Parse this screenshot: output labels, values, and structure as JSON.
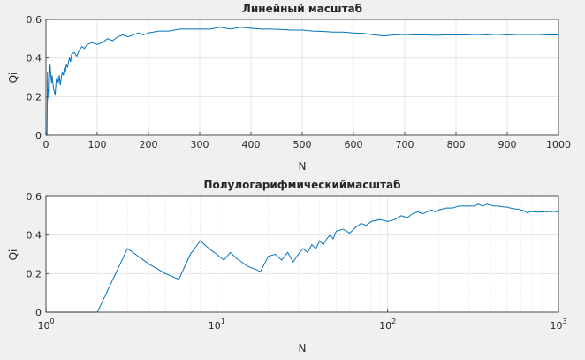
{
  "chart_data": [
    {
      "type": "line",
      "title": "Линейный масштаб",
      "xlabel": "N",
      "ylabel": "Qi",
      "xscale": "linear",
      "xlim": [
        0,
        1000
      ],
      "ylim": [
        0,
        0.6
      ],
      "xticks": [
        0,
        100,
        200,
        300,
        400,
        500,
        600,
        700,
        800,
        900,
        1000
      ],
      "xticklabels": [
        "0",
        "100",
        "200",
        "300",
        "400",
        "500",
        "600",
        "700",
        "800",
        "900",
        "1000"
      ],
      "yticks": [
        0,
        0.2,
        0.4,
        0.6
      ],
      "yticklabels": [
        "0",
        "0.2",
        "0.4",
        "0.6"
      ],
      "grid": true,
      "line_color": "#0072bd",
      "series": [
        {
          "x": [
            1,
            2,
            3,
            4,
            5,
            6,
            7,
            8,
            9,
            10,
            11,
            12,
            13,
            14,
            15,
            16,
            17,
            18,
            19,
            20,
            22,
            24,
            26,
            28,
            30,
            32,
            34,
            36,
            38,
            40,
            42,
            44,
            46,
            48,
            50,
            55,
            60,
            65,
            70,
            75,
            80,
            90,
            100,
            110,
            120,
            130,
            140,
            150,
            160,
            170,
            180,
            190,
            200,
            220,
            240,
            260,
            280,
            300,
            320,
            340,
            360,
            380,
            400,
            420,
            440,
            460,
            480,
            500,
            520,
            540,
            560,
            580,
            600,
            620,
            640,
            660,
            680,
            700,
            720,
            740,
            760,
            780,
            800,
            820,
            840,
            860,
            880,
            900,
            920,
            940,
            960,
            980,
            1000
          ],
          "y": [
            0,
            0,
            0.33,
            0.25,
            0.2,
            0.17,
            0.3,
            0.37,
            0.33,
            0.3,
            0.27,
            0.31,
            0.28,
            0.26,
            0.24,
            0.23,
            0.22,
            0.21,
            0.25,
            0.29,
            0.3,
            0.27,
            0.31,
            0.26,
            0.3,
            0.33,
            0.31,
            0.35,
            0.33,
            0.37,
            0.35,
            0.38,
            0.4,
            0.38,
            0.42,
            0.43,
            0.41,
            0.44,
            0.46,
            0.45,
            0.47,
            0.48,
            0.47,
            0.48,
            0.5,
            0.49,
            0.51,
            0.52,
            0.51,
            0.52,
            0.53,
            0.52,
            0.53,
            0.54,
            0.54,
            0.55,
            0.55,
            0.55,
            0.55,
            0.56,
            0.55,
            0.56,
            0.555,
            0.55,
            0.55,
            0.548,
            0.545,
            0.545,
            0.54,
            0.538,
            0.535,
            0.535,
            0.53,
            0.528,
            0.52,
            0.515,
            0.52,
            0.522,
            0.52,
            0.52,
            0.518,
            0.52,
            0.52,
            0.52,
            0.522,
            0.52,
            0.523,
            0.52,
            0.522,
            0.522,
            0.522,
            0.52,
            0.52
          ]
        }
      ]
    },
    {
      "type": "line",
      "title": "Полулогарифмическиймасштаб",
      "xlabel": "N",
      "ylabel": "Qi",
      "xscale": "log",
      "xlim": [
        1,
        1000
      ],
      "ylim": [
        0,
        0.6
      ],
      "xticks": [
        1,
        10,
        100,
        1000
      ],
      "xtick_bases": [
        "10",
        "10",
        "10",
        "10"
      ],
      "xtick_exponents": [
        "0",
        "1",
        "2",
        "3"
      ],
      "yticks": [
        0,
        0.2,
        0.4,
        0.6
      ],
      "yticklabels": [
        "0",
        "0.2",
        "0.4",
        "0.6"
      ],
      "grid": true,
      "minor_grid": true,
      "line_color": "#0072bd",
      "series": [
        {
          "x": [
            1,
            2,
            3,
            4,
            5,
            6,
            7,
            8,
            9,
            10,
            11,
            12,
            13,
            14,
            15,
            16,
            17,
            18,
            19,
            20,
            22,
            24,
            26,
            28,
            30,
            32,
            34,
            36,
            38,
            40,
            42,
            44,
            46,
            48,
            50,
            55,
            60,
            65,
            70,
            75,
            80,
            90,
            100,
            110,
            120,
            130,
            140,
            150,
            160,
            170,
            180,
            190,
            200,
            220,
            240,
            260,
            280,
            300,
            320,
            340,
            360,
            380,
            400,
            420,
            440,
            460,
            480,
            500,
            520,
            540,
            560,
            580,
            600,
            620,
            640,
            660,
            680,
            700,
            720,
            740,
            760,
            780,
            800,
            820,
            840,
            860,
            880,
            900,
            920,
            940,
            960,
            980,
            1000
          ],
          "y": [
            0,
            0,
            0.33,
            0.25,
            0.2,
            0.17,
            0.3,
            0.37,
            0.33,
            0.3,
            0.27,
            0.31,
            0.28,
            0.26,
            0.24,
            0.23,
            0.22,
            0.21,
            0.25,
            0.29,
            0.3,
            0.27,
            0.31,
            0.26,
            0.3,
            0.33,
            0.31,
            0.35,
            0.33,
            0.37,
            0.35,
            0.38,
            0.4,
            0.38,
            0.42,
            0.43,
            0.41,
            0.44,
            0.46,
            0.45,
            0.47,
            0.48,
            0.47,
            0.48,
            0.5,
            0.49,
            0.51,
            0.52,
            0.51,
            0.52,
            0.53,
            0.52,
            0.53,
            0.54,
            0.54,
            0.55,
            0.55,
            0.55,
            0.55,
            0.56,
            0.55,
            0.56,
            0.555,
            0.55,
            0.55,
            0.548,
            0.545,
            0.545,
            0.54,
            0.538,
            0.535,
            0.535,
            0.53,
            0.528,
            0.52,
            0.515,
            0.52,
            0.522,
            0.52,
            0.52,
            0.518,
            0.52,
            0.52,
            0.52,
            0.522,
            0.52,
            0.523,
            0.52,
            0.522,
            0.522,
            0.522,
            0.52,
            0.52
          ]
        }
      ]
    }
  ]
}
